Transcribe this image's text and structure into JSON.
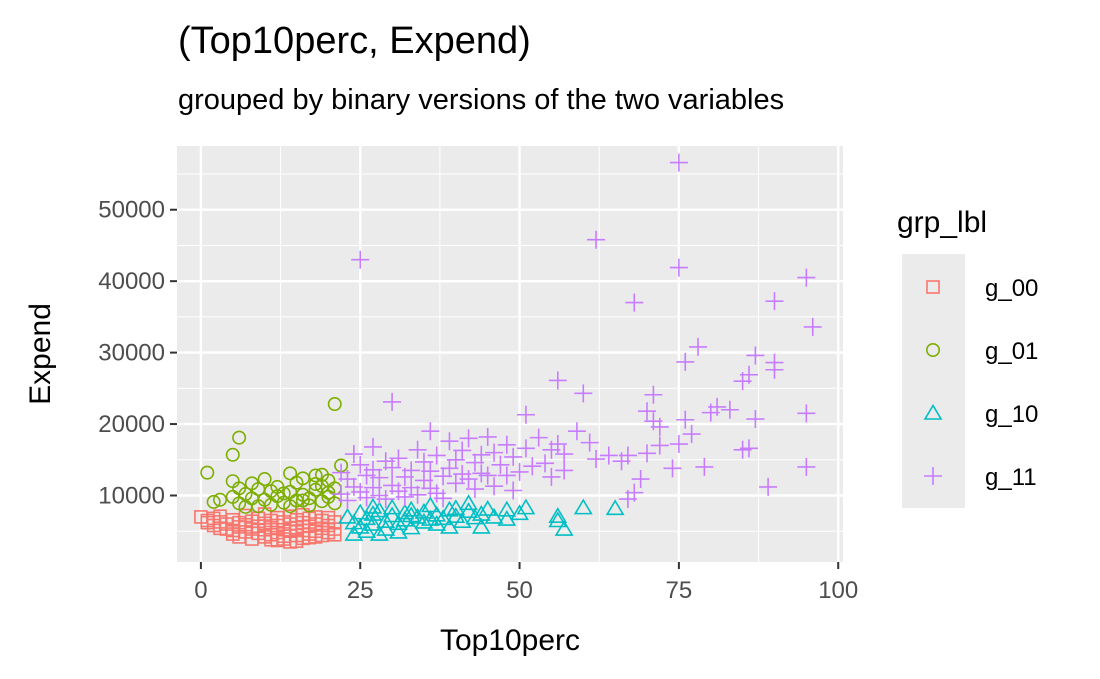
{
  "chart_data": {
    "type": "scatter",
    "title": "(Top10perc, Expend)",
    "subtitle": "grouped by binary versions of the two variables",
    "xlabel": "Top10perc",
    "ylabel": "Expend",
    "xlim": [
      -3.75,
      100.75
    ],
    "ylim": [
      690,
      58920
    ],
    "x_ticks": [
      0,
      25,
      50,
      75,
      100
    ],
    "x_tick_labels": [
      "0",
      "25",
      "50",
      "75",
      "100"
    ],
    "y_ticks": [
      10000,
      20000,
      30000,
      40000,
      50000
    ],
    "y_tick_labels": [
      "10000",
      "20000",
      "30000",
      "40000",
      "50000"
    ],
    "grid": true,
    "legend": {
      "title": "grp_lbl",
      "position": "right"
    },
    "series": [
      {
        "name": "g_00",
        "color": "#F8766D",
        "marker": "square-open",
        "points": [
          [
            0,
            7000
          ],
          [
            1,
            6500
          ],
          [
            1,
            6200
          ],
          [
            2,
            6800
          ],
          [
            2,
            5800
          ],
          [
            3,
            6300
          ],
          [
            3,
            5400
          ],
          [
            3,
            7100
          ],
          [
            4,
            6000
          ],
          [
            4,
            5300
          ],
          [
            5,
            6600
          ],
          [
            5,
            5100
          ],
          [
            5,
            4600
          ],
          [
            6,
            6200
          ],
          [
            6,
            5600
          ],
          [
            6,
            4200
          ],
          [
            7,
            5900
          ],
          [
            7,
            7200
          ],
          [
            7,
            4900
          ],
          [
            8,
            6400
          ],
          [
            8,
            5300
          ],
          [
            8,
            3900
          ],
          [
            9,
            6800
          ],
          [
            9,
            5700
          ],
          [
            9,
            4700
          ],
          [
            10,
            6100
          ],
          [
            10,
            5200
          ],
          [
            10,
            4200
          ],
          [
            10,
            7400
          ],
          [
            11,
            6500
          ],
          [
            11,
            5500
          ],
          [
            11,
            4500
          ],
          [
            12,
            6900
          ],
          [
            12,
            5800
          ],
          [
            12,
            4800
          ],
          [
            12,
            3700
          ],
          [
            13,
            6300
          ],
          [
            13,
            5200
          ],
          [
            13,
            4300
          ],
          [
            14,
            7100
          ],
          [
            14,
            6000
          ],
          [
            14,
            5000
          ],
          [
            14,
            3500
          ],
          [
            15,
            6600
          ],
          [
            15,
            5500
          ],
          [
            15,
            4400
          ],
          [
            16,
            7300
          ],
          [
            16,
            6200
          ],
          [
            16,
            5100
          ],
          [
            16,
            4000
          ],
          [
            17,
            6800
          ],
          [
            17,
            5700
          ],
          [
            17,
            4600
          ],
          [
            18,
            7000
          ],
          [
            18,
            6000
          ],
          [
            18,
            5000
          ],
          [
            18,
            4200
          ],
          [
            19,
            6500
          ],
          [
            19,
            5400
          ],
          [
            19,
            4400
          ],
          [
            20,
            6900
          ],
          [
            20,
            5800
          ],
          [
            20,
            4800
          ],
          [
            21,
            6300
          ],
          [
            21,
            5300
          ],
          [
            21,
            4500
          ],
          [
            13,
            3900
          ],
          [
            15,
            3600
          ],
          [
            11,
            3800
          ],
          [
            17,
            4100
          ]
        ]
      },
      {
        "name": "g_01",
        "color": "#7CAE00",
        "marker": "circle-open",
        "points": [
          [
            1,
            13200
          ],
          [
            2,
            9100
          ],
          [
            3,
            9400
          ],
          [
            5,
            15700
          ],
          [
            5,
            9800
          ],
          [
            5,
            12000
          ],
          [
            6,
            18100
          ],
          [
            6,
            11000
          ],
          [
            6,
            8900
          ],
          [
            7,
            10200
          ],
          [
            8,
            9600
          ],
          [
            8,
            11700
          ],
          [
            9,
            8500
          ],
          [
            9,
            10900
          ],
          [
            10,
            12300
          ],
          [
            10,
            9400
          ],
          [
            11,
            10600
          ],
          [
            11,
            8700
          ],
          [
            12,
            9900
          ],
          [
            12,
            11200
          ],
          [
            13,
            9000
          ],
          [
            14,
            13100
          ],
          [
            14,
            10500
          ],
          [
            14,
            8500
          ],
          [
            15,
            11800
          ],
          [
            15,
            9300
          ],
          [
            16,
            10100
          ],
          [
            16,
            12400
          ],
          [
            17,
            9600
          ],
          [
            17,
            8600
          ],
          [
            18,
            10800
          ],
          [
            18,
            12800
          ],
          [
            18,
            11600
          ],
          [
            19,
            9200
          ],
          [
            19,
            11300
          ],
          [
            20,
            9800
          ],
          [
            20,
            12100
          ],
          [
            20,
            10400
          ],
          [
            21,
            8900
          ],
          [
            21,
            11000
          ],
          [
            22,
            14200
          ],
          [
            21,
            22800
          ],
          [
            19,
            12900
          ],
          [
            16,
            9300
          ],
          [
            13,
            10300
          ],
          [
            7,
            8400
          ]
        ]
      },
      {
        "name": "g_10",
        "color": "#00BFC4",
        "marker": "triangle-open",
        "points": [
          [
            23,
            7000
          ],
          [
            24,
            6200
          ],
          [
            24,
            4600
          ],
          [
            25,
            7600
          ],
          [
            25,
            5600
          ],
          [
            26,
            6800
          ],
          [
            26,
            5000
          ],
          [
            27,
            7400
          ],
          [
            27,
            6000
          ],
          [
            28,
            4600
          ],
          [
            28,
            7900
          ],
          [
            29,
            6400
          ],
          [
            29,
            5300
          ],
          [
            30,
            7200
          ],
          [
            30,
            8300
          ],
          [
            31,
            6100
          ],
          [
            31,
            4900
          ],
          [
            32,
            7600
          ],
          [
            32,
            6600
          ],
          [
            33,
            5500
          ],
          [
            33,
            8000
          ],
          [
            34,
            7000
          ],
          [
            35,
            6300
          ],
          [
            35,
            7700
          ],
          [
            36,
            6700
          ],
          [
            36,
            8600
          ],
          [
            37,
            6000
          ],
          [
            37,
            7300
          ],
          [
            38,
            6800
          ],
          [
            39,
            5600
          ],
          [
            39,
            8000
          ],
          [
            40,
            7100
          ],
          [
            41,
            6400
          ],
          [
            42,
            7800
          ],
          [
            42,
            8900
          ],
          [
            43,
            6900
          ],
          [
            44,
            5600
          ],
          [
            44,
            7400
          ],
          [
            45,
            8100
          ],
          [
            46,
            7000
          ],
          [
            48,
            6700
          ],
          [
            48,
            8000
          ],
          [
            50,
            7500
          ],
          [
            51,
            8300
          ],
          [
            56,
            6500
          ],
          [
            56,
            7100
          ],
          [
            57,
            5300
          ],
          [
            60,
            8300
          ],
          [
            65,
            8200
          ],
          [
            27,
            8400
          ],
          [
            33,
            7200
          ],
          [
            40,
            8200
          ]
        ]
      },
      {
        "name": "g_11",
        "color": "#C77CFF",
        "marker": "plus",
        "points": [
          [
            22,
            13200
          ],
          [
            22,
            10200
          ],
          [
            23,
            12300
          ],
          [
            23,
            9300
          ],
          [
            24,
            15800
          ],
          [
            24,
            11200
          ],
          [
            25,
            43000
          ],
          [
            25,
            14300
          ],
          [
            25,
            10500
          ],
          [
            26,
            12800
          ],
          [
            26,
            9700
          ],
          [
            27,
            16800
          ],
          [
            27,
            13600
          ],
          [
            27,
            11100
          ],
          [
            28,
            10000
          ],
          [
            28,
            12500
          ],
          [
            29,
            14800
          ],
          [
            29,
            9500
          ],
          [
            30,
            23100
          ],
          [
            30,
            11400
          ],
          [
            30,
            13900
          ],
          [
            31,
            10600
          ],
          [
            31,
            15200
          ],
          [
            32,
            12600
          ],
          [
            32,
            9800
          ],
          [
            33,
            13500
          ],
          [
            33,
            11100
          ],
          [
            34,
            16400
          ],
          [
            34,
            10100
          ],
          [
            35,
            14700
          ],
          [
            35,
            12100
          ],
          [
            36,
            19000
          ],
          [
            36,
            11000
          ],
          [
            36,
            13400
          ],
          [
            37,
            10300
          ],
          [
            37,
            15600
          ],
          [
            38,
            12700
          ],
          [
            38,
            9600
          ],
          [
            39,
            13800
          ],
          [
            39,
            17600
          ],
          [
            40,
            15000
          ],
          [
            40,
            11700
          ],
          [
            41,
            13000
          ],
          [
            41,
            16300
          ],
          [
            42,
            18000
          ],
          [
            42,
            12300
          ],
          [
            43,
            14600
          ],
          [
            43,
            10900
          ],
          [
            44,
            15700
          ],
          [
            44,
            13100
          ],
          [
            45,
            18200
          ],
          [
            45,
            12800
          ],
          [
            46,
            16000
          ],
          [
            46,
            11300
          ],
          [
            47,
            14300
          ],
          [
            48,
            17100
          ],
          [
            48,
            12800
          ],
          [
            49,
            15400
          ],
          [
            49,
            10700
          ],
          [
            50,
            13300
          ],
          [
            51,
            21300
          ],
          [
            51,
            16600
          ],
          [
            52,
            14100
          ],
          [
            53,
            18100
          ],
          [
            54,
            14500
          ],
          [
            55,
            16400
          ],
          [
            55,
            12600
          ],
          [
            56,
            26100
          ],
          [
            56,
            17200
          ],
          [
            57,
            15800
          ],
          [
            57,
            13500
          ],
          [
            59,
            19000
          ],
          [
            60,
            24300
          ],
          [
            61,
            17400
          ],
          [
            62,
            45800
          ],
          [
            62,
            15100
          ],
          [
            64,
            15600
          ],
          [
            66,
            14800
          ],
          [
            67,
            15600
          ],
          [
            67,
            9500
          ],
          [
            68,
            37000
          ],
          [
            68,
            10400
          ],
          [
            69,
            12300
          ],
          [
            70,
            21800
          ],
          [
            70,
            15900
          ],
          [
            71,
            24100
          ],
          [
            71,
            20400
          ],
          [
            72,
            19600
          ],
          [
            72,
            17000
          ],
          [
            74,
            13800
          ],
          [
            75,
            56600
          ],
          [
            75,
            41900
          ],
          [
            75,
            17200
          ],
          [
            76,
            20600
          ],
          [
            76,
            28700
          ],
          [
            77,
            18600
          ],
          [
            78,
            30800
          ],
          [
            79,
            14000
          ],
          [
            80,
            21600
          ],
          [
            81,
            22400
          ],
          [
            83,
            22000
          ],
          [
            85,
            26000
          ],
          [
            85,
            16400
          ],
          [
            86,
            16600
          ],
          [
            86,
            26900
          ],
          [
            87,
            29600
          ],
          [
            87,
            20700
          ],
          [
            89,
            11200
          ],
          [
            90,
            37200
          ],
          [
            90,
            27600
          ],
          [
            90,
            28600
          ],
          [
            95,
            40500
          ],
          [
            95,
            21500
          ],
          [
            95,
            14000
          ],
          [
            96,
            33600
          ]
        ]
      }
    ]
  }
}
